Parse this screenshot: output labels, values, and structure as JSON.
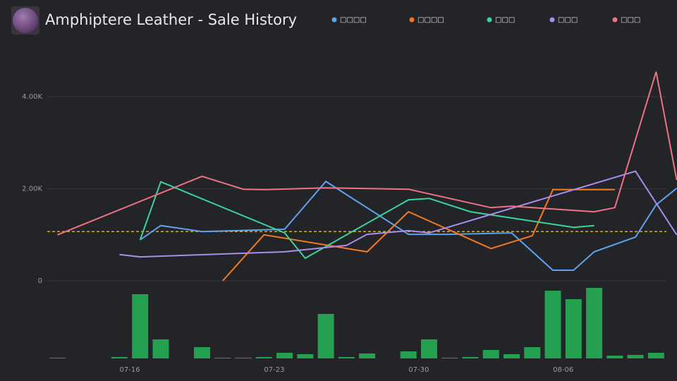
{
  "chart_data": [
    {
      "type": "line",
      "title": "Amphiptere Leather - Sale History",
      "xlim": [
        12,
        42
      ],
      "xticks": [
        {
          "value": 16,
          "label": "07-16"
        },
        {
          "value": 23,
          "label": "07-23"
        },
        {
          "value": 30,
          "label": "07-30"
        },
        {
          "value": 37,
          "label": "08-06"
        }
      ],
      "ylim": [
        0,
        5000
      ],
      "yticks": [
        0,
        {
          "value": 2000,
          "label": "2.00K"
        },
        {
          "value": 4000,
          "label": "4.00K"
        }
      ],
      "grid": true,
      "average": 1070,
      "average_color": "#e0c030",
      "series": [
        {
          "name": "□□□□",
          "color": "#5fa2f0",
          "x": [
            16.5,
            17.5,
            19.5,
            23.5,
            25.5,
            29.5,
            31.5,
            34.5,
            36.5,
            37.5,
            38.5,
            40.5,
            41.5,
            42.5
          ],
          "values": [
            890,
            1200,
            1070,
            1120,
            2160,
            1010,
            1010,
            1040,
            230,
            230,
            630,
            950,
            1650,
            2010
          ]
        },
        {
          "name": "□□□□",
          "color": "#f07a22",
          "x": [
            20.5,
            22.5,
            27.5,
            29.5,
            33.5,
            35.5,
            36.5,
            39.5
          ],
          "values": [
            0,
            1000,
            630,
            1500,
            700,
            980,
            1980,
            1980
          ]
        },
        {
          "name": "□□□",
          "color": "#3bd49a",
          "x": [
            16.5,
            17.5,
            23.5,
            24.5,
            29.5,
            30.5,
            32.5,
            37.5,
            38.5
          ],
          "values": [
            890,
            2150,
            1040,
            490,
            1760,
            1790,
            1500,
            1160,
            1200
          ]
        },
        {
          "name": "□□□",
          "color": "#a98cf0",
          "x": [
            15.5,
            16.5,
            23.5,
            26.5,
            27.5,
            29.5,
            30.5,
            40.5,
            42.5
          ],
          "values": [
            570,
            520,
            630,
            770,
            1010,
            1090,
            1040,
            2380,
            1000
          ]
        },
        {
          "name": "□□□",
          "color": "#f07088",
          "x": [
            12.5,
            19.5,
            21.5,
            22.5,
            25.5,
            29.5,
            33.5,
            34.5,
            38.5,
            39.5,
            41.5,
            42.5
          ],
          "values": [
            1000,
            2270,
            1990,
            1980,
            2020,
            1990,
            1590,
            1620,
            1500,
            1590,
            4540,
            2190
          ]
        }
      ]
    },
    {
      "type": "bar",
      "color": "#25a050",
      "ylim": [
        0,
        100
      ],
      "x": [
        12.5,
        15.5,
        16.5,
        17.5,
        19.5,
        20.5,
        21.5,
        22.5,
        23.5,
        24.5,
        25.5,
        26.5,
        27.5,
        29.5,
        30.5,
        31.5,
        32.5,
        33.5,
        34.5,
        35.5,
        36.5,
        37.5,
        38.5,
        39.5,
        40.5,
        41.5
      ],
      "values": [
        1,
        2,
        91,
        27,
        16,
        1,
        1,
        2,
        8,
        6,
        63,
        2,
        7,
        10,
        27,
        1,
        2,
        12,
        6,
        16,
        96,
        84,
        100,
        4,
        5,
        8
      ]
    }
  ]
}
